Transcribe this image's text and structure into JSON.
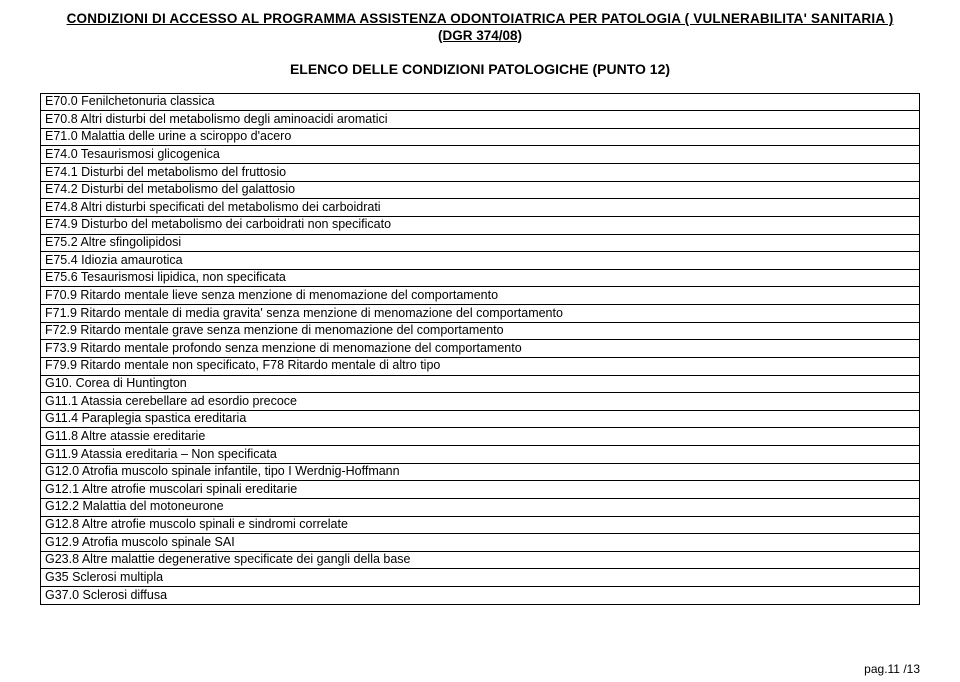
{
  "header": {
    "title_line": "CONDIZIONI DI ACCESSO AL PROGRAMMA ASSISTENZA ODONTOIATRICA  PER  PATOLOGIA ( VULNERABILITA' SANITARIA )",
    "title_sub": "(DGR 374/08)"
  },
  "section_title": "ELENCO DELLE CONDIZIONI PATOLOGICHE (PUNTO 12)",
  "rows": [
    "E70.0 Fenilchetonuria classica",
    "E70.8 Altri disturbi del metabolismo degli aminoacidi aromatici",
    "E71.0 Malattia delle urine a sciroppo d'acero",
    "E74.0 Tesaurismosi glicogenica",
    "E74.1 Disturbi del metabolismo del fruttosio",
    "E74.2 Disturbi del metabolismo del galattosio",
    "E74.8 Altri disturbi specificati del metabolismo dei carboidrati",
    "E74.9 Disturbo del metabolismo dei carboidrati non specificato",
    "E75.2 Altre sfingolipidosi",
    "E75.4 Idiozia amaurotica",
    "E75.6 Tesaurismosi lipidica, non specificata",
    "F70.9 Ritardo mentale lieve senza menzione di menomazione del comportamento",
    "F71.9 Ritardo mentale di media gravita' senza menzione di menomazione del comportamento",
    "F72.9 Ritardo mentale grave senza menzione di menomazione del comportamento",
    "F73.9 Ritardo mentale profondo senza menzione di menomazione del comportamento",
    "F79.9 Ritardo mentale non specificato, F78 Ritardo mentale di altro tipo",
    "G10. Corea di Huntington",
    "G11.1 Atassia cerebellare ad esordio precoce",
    "G11.4 Paraplegia spastica ereditaria",
    "G11.8 Altre atassie ereditarie",
    "G11.9 Atassia ereditaria – Non specificata",
    "G12.0 Atrofia muscolo spinale infantile, tipo I Werdnig-Hoffmann",
    "G12.1 Altre atrofie muscolari spinali ereditarie",
    "G12.2 Malattia del motoneurone",
    "G12.8 Altre atrofie muscolo spinali e sindromi correlate",
    "G12.9 Atrofia muscolo spinale SAI",
    "G23.8 Altre malattie degenerative specificate dei gangli della base",
    "G35 Sclerosi multipla",
    "G37.0 Sclerosi diffusa"
  ],
  "page_number": "pag.11 /13"
}
